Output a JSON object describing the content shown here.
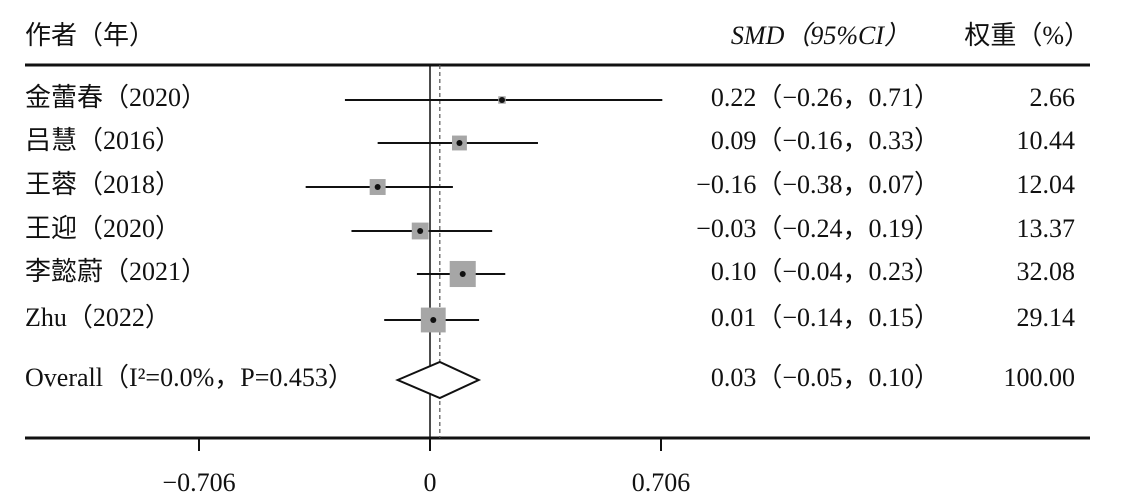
{
  "chart_data": {
    "type": "forest",
    "headers": {
      "study": "作者（年）",
      "effect": "SMD（95%CI）",
      "weight": "权重（%）"
    },
    "categories": [
      "金蕾春（2020）",
      "吕慧（2016）",
      "王蓉（2018）",
      "王迎（2020）",
      "李懿蔚（2021）",
      "Zhu（2022）"
    ],
    "values": [
      0.22,
      0.09,
      -0.16,
      -0.03,
      0.1,
      0.01
    ],
    "lower": [
      -0.26,
      -0.16,
      -0.38,
      -0.24,
      -0.04,
      -0.14
    ],
    "upper": [
      0.71,
      0.33,
      0.07,
      0.19,
      0.23,
      0.15
    ],
    "value_labels": [
      "0.22（−0.26，0.71）",
      "0.09（−0.16，0.33）",
      "−0.16（−0.38，0.07）",
      "−0.03（−0.24，0.19）",
      "0.10（−0.04，0.23）",
      "0.01（−0.14，0.15）"
    ],
    "weights": [
      2.66,
      10.44,
      12.04,
      13.37,
      32.08,
      29.14
    ],
    "overall": {
      "label": "Overall（I²=0.0%，P=0.453）",
      "value": 0.03,
      "lower": -0.05,
      "upper": 0.1,
      "value_label": "0.03（−0.05，0.10）",
      "weight": 100,
      "weight_label": "100.00"
    },
    "color": "#a6a6a6",
    "xlim": [
      -0.706,
      0.706
    ],
    "xticks": [
      {
        "value": -0.706,
        "label": "−0.706"
      },
      0,
      0.706
    ]
  }
}
